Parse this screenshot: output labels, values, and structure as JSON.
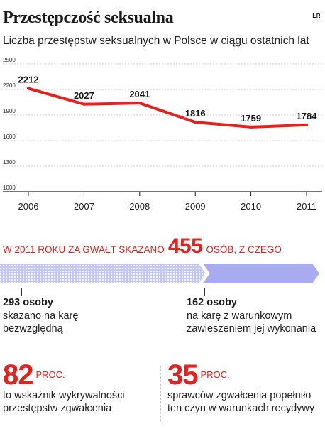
{
  "header": {
    "title": "Przestępczość seksualna",
    "subtitle": "Liczba przestępstw seksualnych w Polsce w ciągu ostatnich lat",
    "source": "ŁR"
  },
  "colors": {
    "accent": "#e5211d",
    "bar_light": "#c3c8f2",
    "bar_dark": "#a8acef"
  },
  "chart_data": {
    "type": "line",
    "x": [
      "2006",
      "2007",
      "2008",
      "2009",
      "2010",
      "2011"
    ],
    "series": [
      {
        "values": [
          2212,
          2027,
          2041,
          1816,
          1759,
          1784
        ]
      }
    ],
    "value_labels": [
      "2212",
      "2027",
      "2041",
      "1816",
      "1759",
      "1784"
    ],
    "yticks": [
      1000,
      1300,
      1600,
      1900,
      2200,
      2500
    ],
    "ytick_labels": [
      "1000",
      "1300",
      "1600",
      "1900",
      "2200",
      "2500"
    ],
    "ylim": [
      1000,
      2500
    ],
    "grid": true
  },
  "banner": {
    "before": "W 2011 roku za gwałt skazano",
    "number": "455",
    "after": "osób, z czego"
  },
  "split": {
    "total": 455,
    "parts": [
      {
        "count": 293,
        "label_strong": "293 osoby",
        "lines": [
          "skazano na karę",
          "bezwzględną"
        ]
      },
      {
        "count": 162,
        "label_strong": "162 osoby",
        "lines": [
          "na karę z warunkowym",
          "zawieszeniem jej wykonania"
        ]
      }
    ]
  },
  "stats": [
    {
      "number": "82",
      "unit": "PROC.",
      "lines": [
        "to wskaźnik wykrywalności",
        "przestępstw zgwałcenia"
      ]
    },
    {
      "number": "35",
      "unit": "PROC.",
      "lines": [
        "sprawców zgwałcenia popełniło",
        "ten czyn w warunkach recydywy"
      ]
    }
  ]
}
